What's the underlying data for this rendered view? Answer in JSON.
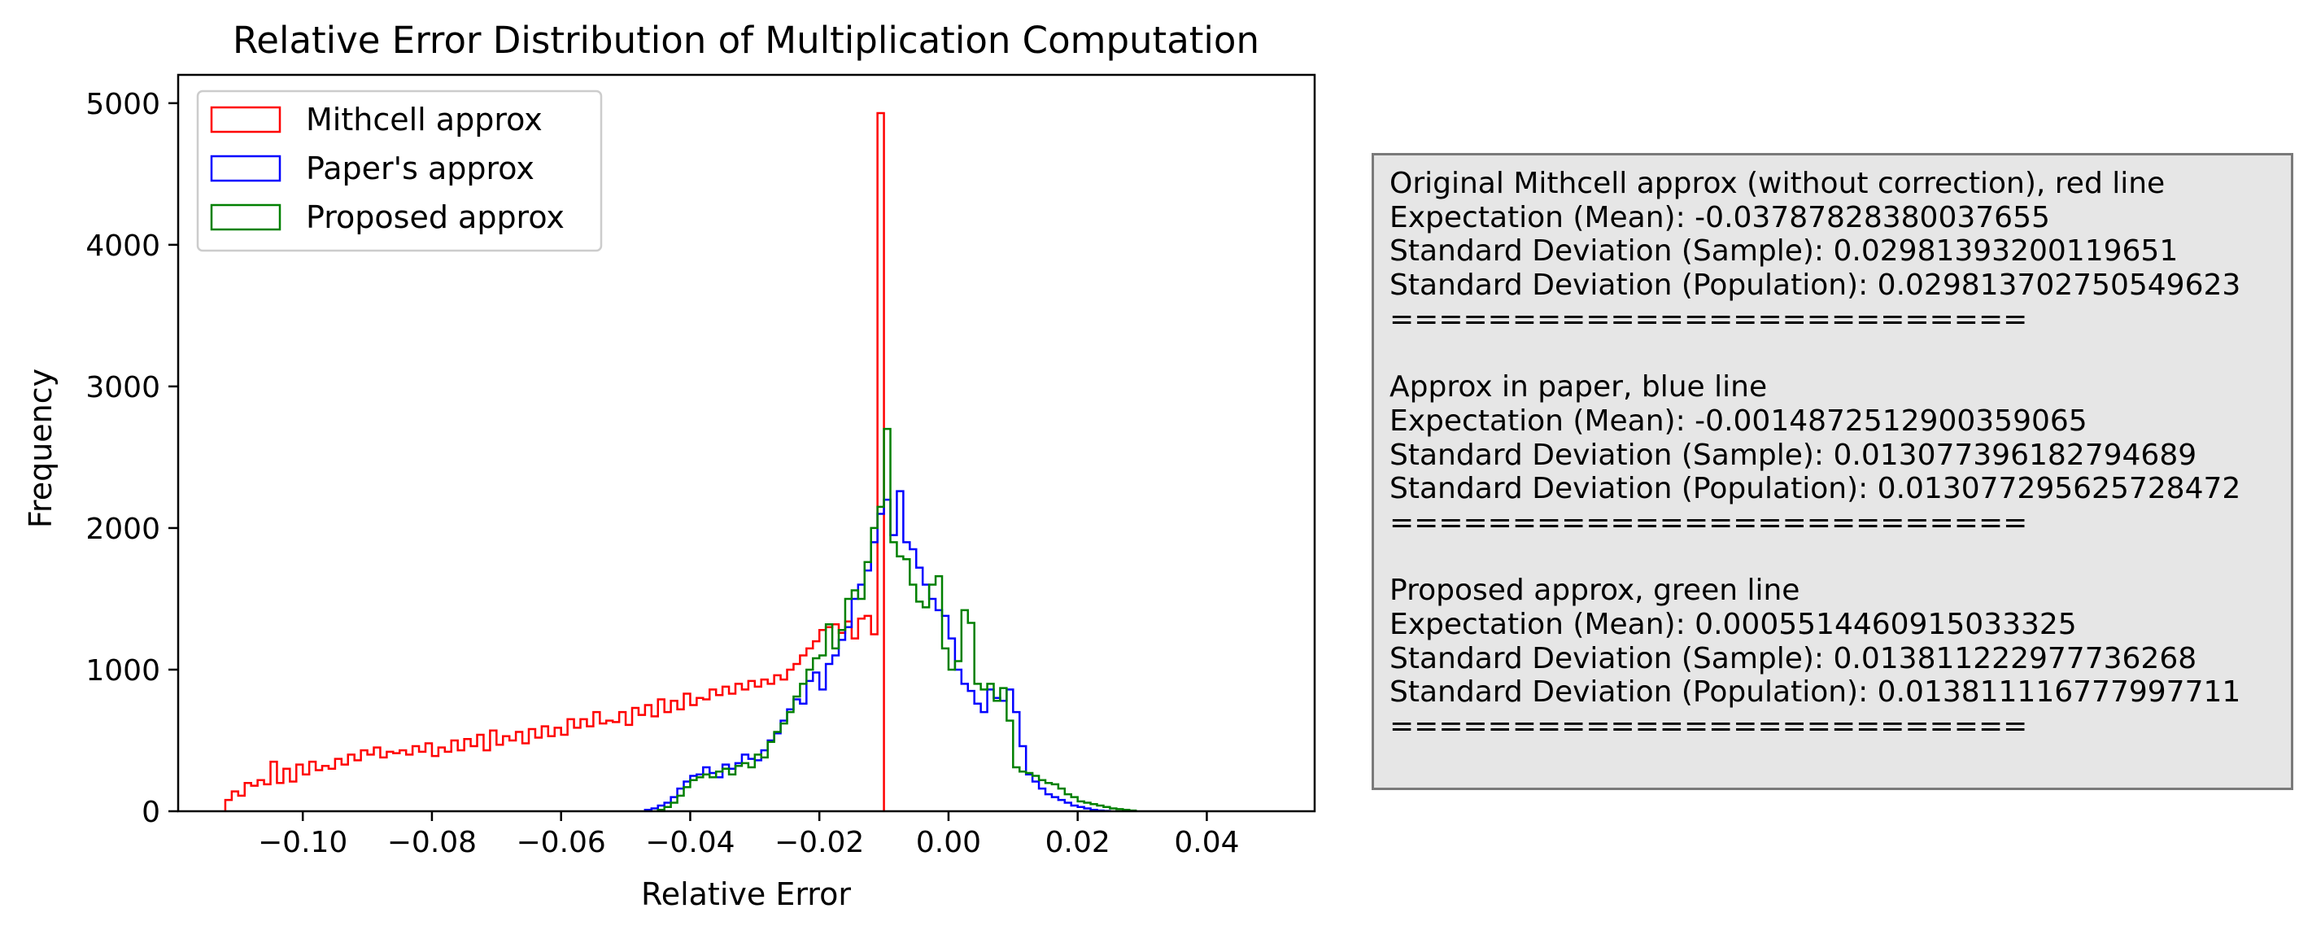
{
  "chart_data": {
    "type": "histogram",
    "title": "Relative Error Distribution of Multiplication Computation",
    "xlabel": "Relative Error",
    "ylabel": "Frequency",
    "xlim": [
      -0.1193,
      0.0567
    ],
    "ylim": [
      0,
      5200
    ],
    "x_ticks": [
      -0.1,
      -0.08,
      -0.06,
      -0.04,
      -0.02,
      0.0,
      0.02,
      0.04
    ],
    "x_tick_labels": [
      "−0.10",
      "−0.08",
      "−0.06",
      "−0.04",
      "−0.02",
      "0.00",
      "0.02",
      "0.04"
    ],
    "y_ticks": [
      0,
      1000,
      2000,
      3000,
      4000,
      5000
    ],
    "y_tick_labels": [
      "0",
      "1000",
      "2000",
      "3000",
      "4000",
      "5000"
    ],
    "grid": false,
    "legend_position": "upper-left",
    "bin_width": 0.001,
    "series": [
      {
        "name": "Mithcell approx",
        "color": "#ff0000",
        "x_start": -0.112,
        "values": [
          80,
          140,
          110,
          200,
          180,
          220,
          190,
          350,
          200,
          300,
          210,
          330,
          260,
          350,
          290,
          320,
          300,
          370,
          330,
          400,
          360,
          430,
          400,
          450,
          380,
          420,
          410,
          430,
          400,
          460,
          420,
          480,
          390,
          450,
          420,
          500,
          430,
          510,
          460,
          540,
          430,
          570,
          470,
          530,
          500,
          560,
          480,
          580,
          520,
          600,
          530,
          590,
          540,
          650,
          590,
          650,
          600,
          700,
          620,
          640,
          630,
          700,
          610,
          730,
          680,
          750,
          670,
          790,
          700,
          780,
          720,
          830,
          750,
          800,
          790,
          860,
          820,
          880,
          830,
          900,
          860,
          920,
          880,
          930,
          900,
          960,
          930,
          1000,
          1040,
          1100,
          1150,
          1200,
          1280,
          1300,
          1320,
          1260,
          1340,
          1220,
          1360,
          1380,
          1250,
          4930
        ]
      },
      {
        "name": "Paper's approx",
        "color": "#0000ff",
        "x_start": -0.047,
        "values": [
          10,
          20,
          40,
          60,
          100,
          160,
          210,
          250,
          260,
          310,
          270,
          240,
          330,
          300,
          340,
          400,
          370,
          360,
          430,
          500,
          550,
          640,
          720,
          790,
          760,
          920,
          980,
          860,
          1040,
          1100,
          1210,
          1300,
          1500,
          1600,
          1700,
          1900,
          2100,
          2200,
          1950,
          2260,
          1900,
          1850,
          1720,
          1600,
          1500,
          1420,
          1380,
          1220,
          1000,
          900,
          850,
          760,
          700,
          860,
          800,
          780,
          860,
          700,
          460,
          260,
          210,
          160,
          120,
          100,
          80,
          60,
          40,
          30,
          20,
          10,
          5,
          2
        ]
      },
      {
        "name": "Proposed approx",
        "color": "#008000",
        "x_start": -0.045,
        "values": [
          10,
          30,
          60,
          110,
          170,
          220,
          240,
          260,
          240,
          280,
          300,
          260,
          320,
          340,
          310,
          400,
          380,
          490,
          560,
          620,
          700,
          810,
          900,
          1000,
          1080,
          1100,
          1320,
          1150,
          1280,
          1500,
          1560,
          1500,
          1760,
          2000,
          2150,
          2700,
          1900,
          1800,
          1780,
          1600,
          1480,
          1440,
          1600,
          1660,
          1150,
          1000,
          1060,
          1420,
          1330,
          900,
          860,
          900,
          780,
          870,
          640,
          310,
          280,
          270,
          250,
          220,
          200,
          190,
          160,
          120,
          100,
          70,
          60,
          50,
          40,
          30,
          20,
          15,
          10,
          5
        ]
      }
    ]
  },
  "stats_box": {
    "lines": [
      "Original Mithcell approx (without correction), red line",
      "Expectation (Mean): -0.03787828380037655",
      "Standard Deviation (Sample): 0.02981393200119651",
      "Standard Deviation (Population): 0.029813702750549623",
      "==========================",
      "",
      "Approx in paper, blue line",
      "Expectation (Mean): -0.0014872512900359065",
      "Standard Deviation (Sample): 0.013077396182794689",
      "Standard Deviation (Population): 0.013077295625728472",
      "==========================",
      "",
      "Proposed approx, green line",
      "Expectation (Mean): 0.0005514460915033325",
      "Standard Deviation (Sample): 0.013811222977736268",
      "Standard Deviation (Population): 0.013811116777997711",
      "=========================="
    ]
  }
}
